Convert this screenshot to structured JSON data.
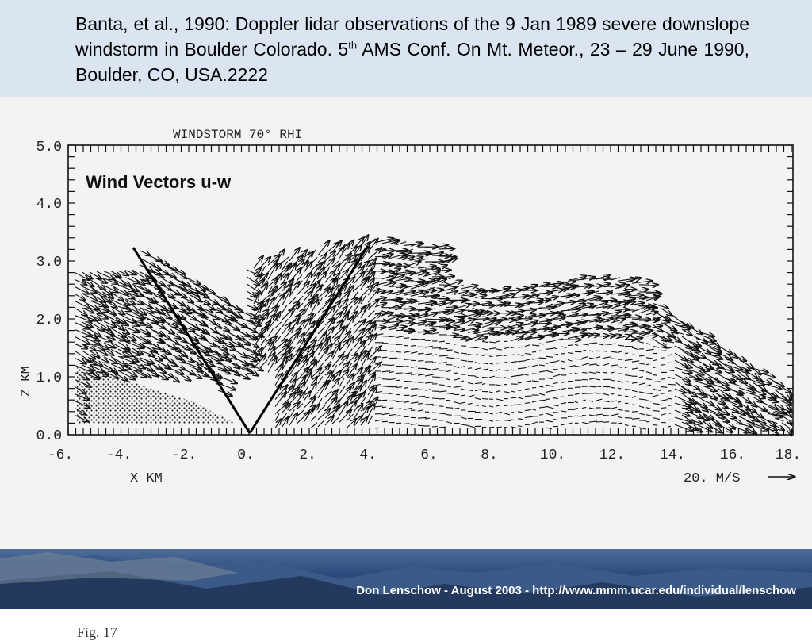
{
  "header": {
    "citation_line1": "Banta, et al., 1990: Doppler lidar observations of the 9 Jan 1989 severe downslope windstorm in Boulder Colorado. 5",
    "citation_sup": "th",
    "citation_line2": " AMS Conf. On Mt. Meteor., 23 – 29 June 1990, Boulder, CO, USA.2222"
  },
  "figure": {
    "plot_title": "WINDSTORM 70° RHI",
    "panel_label": "Wind Vectors  u-w",
    "x_axis_label": "X KM",
    "y_axis_label": "Z KM",
    "x_ticks": [
      "-6.",
      "-4.",
      "-2.",
      "0.",
      "2.",
      "4.",
      "6.",
      "8.",
      "10.",
      "12.",
      "14.",
      "16.",
      "18."
    ],
    "y_ticks": [
      "0.0",
      "1.0",
      "2.0",
      "3.0",
      "4.0",
      "5.0"
    ],
    "scale_label": "20. M/S",
    "caption": "Fig. 17"
  },
  "footer": {
    "credit": "Don Lenschow - August 2003 - http://www.mmm.ucar.edu/individual/lenschow"
  },
  "colors": {
    "header_bg": "#dbe5f2",
    "figure_bg": "#f3f3f3",
    "ink": "#111111",
    "footer_bg": "#2d4c7d"
  }
}
